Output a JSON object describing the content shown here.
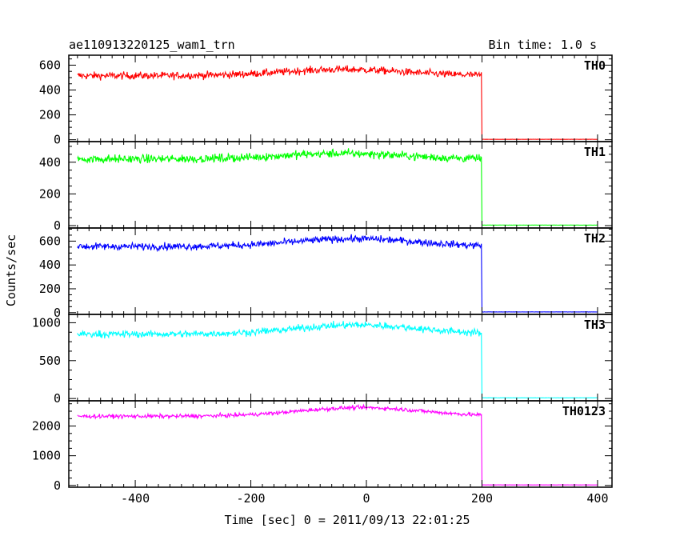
{
  "header": {
    "title": "ae110913220125_wam1_trn",
    "bin_time": "Bin time: 1.0 s"
  },
  "chart_data": {
    "type": "line",
    "xlabel": "Time [sec] 0 = 2011/09/13 22:01:25",
    "ylabel": "Counts/sec",
    "xlim": [
      -515,
      425
    ],
    "xticks": [
      -400,
      -200,
      0,
      200,
      400
    ],
    "x_step_sec": 1.0,
    "x_start": -500,
    "x_cutoff": 200,
    "x_end": 400,
    "panels": [
      {
        "name": "TH0",
        "color": "#ff0000",
        "ylim": [
          -15,
          680
        ],
        "yticks": [
          0,
          200,
          400,
          600
        ],
        "baseline_before": 515,
        "peak_level": 565,
        "peak_time": -40,
        "noise": 25,
        "after_cutoff": 3
      },
      {
        "name": "TH1",
        "color": "#00ff00",
        "ylim": [
          -15,
          530
        ],
        "yticks": [
          0,
          200,
          400
        ],
        "baseline_before": 420,
        "peak_level": 455,
        "peak_time": -40,
        "noise": 22,
        "after_cutoff": 3
      },
      {
        "name": "TH2",
        "color": "#0000ff",
        "ylim": [
          -15,
          710
        ],
        "yticks": [
          0,
          200,
          400,
          600
        ],
        "baseline_before": 555,
        "peak_level": 620,
        "peak_time": -20,
        "noise": 25,
        "after_cutoff": 5
      },
      {
        "name": "TH3",
        "color": "#00ffff",
        "ylim": [
          -30,
          1110
        ],
        "yticks": [
          0,
          500,
          1000
        ],
        "baseline_before": 850,
        "peak_level": 970,
        "peak_time": -15,
        "noise": 38,
        "after_cutoff": 8
      },
      {
        "name": "TH0123",
        "color": "#ff00ff",
        "ylim": [
          -60,
          2850
        ],
        "yticks": [
          0,
          1000,
          2000
        ],
        "baseline_before": 2330,
        "peak_level": 2620,
        "peak_time": -10,
        "noise": 55,
        "after_cutoff": 15
      }
    ]
  }
}
